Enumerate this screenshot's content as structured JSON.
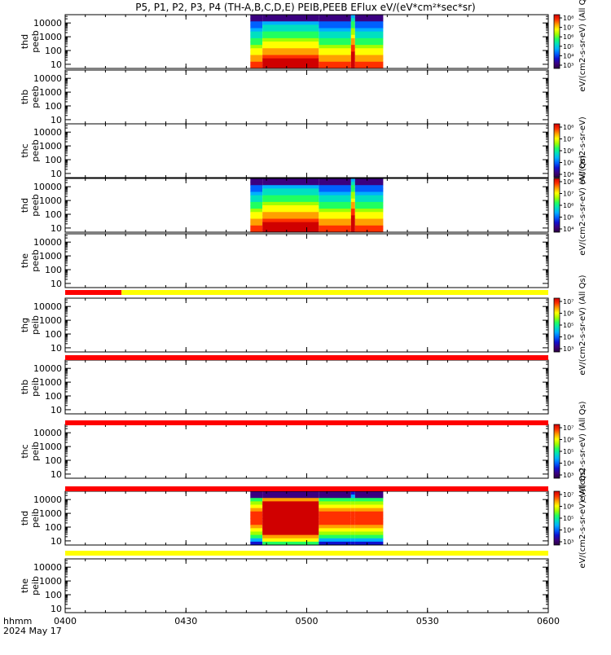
{
  "title": "P5, P1, P2, P3, P4 (TH-A,B,C,D,E) PEIB,PEEB EFlux eV/(eV*cm²*sec*sr)",
  "footer": {
    "hhmm_label": "hhmm",
    "date_label": "2024 May 17"
  },
  "colors": {
    "frame": "#000000",
    "quality_red": "#ff0000",
    "quality_yellow": "#ffff00",
    "colormap": [
      "#2a0040",
      "#3b0080",
      "#1010d0",
      "#0060ff",
      "#00b0ff",
      "#00e0c0",
      "#20ff60",
      "#a0ff00",
      "#ffff00",
      "#ffa000",
      "#ff3000",
      "#d00000"
    ]
  },
  "chart_data": {
    "type": "heatmap",
    "x_axis": {
      "ticks": [
        "0400",
        "0430",
        "0500",
        "0530",
        "0600"
      ],
      "range": [
        "04:00",
        "06:00"
      ]
    },
    "y_axis": {
      "scale": "log",
      "range": [
        5,
        40000
      ],
      "ticks": [
        "10",
        "100",
        "1000",
        "10000"
      ]
    },
    "panels": [
      {
        "label_top": "thd",
        "label_bottom": "peeb",
        "ylabel": "thd peeb",
        "data_interval": [
          "04:46",
          "05:19"
        ],
        "features": [
          {
            "at": "04:49",
            "note": "vertical edge"
          },
          {
            "at": "05:11",
            "note": "narrow enhancement"
          }
        ]
      },
      {
        "label_top": "thb",
        "label_bottom": "peeb",
        "data_interval": null
      },
      {
        "label_top": "thc",
        "label_bottom": "peeb",
        "data_interval": null
      },
      {
        "label_top": "thd",
        "label_bottom": "peeb",
        "data_interval": [
          "04:46",
          "05:19"
        ]
      },
      {
        "label_top": "the",
        "label_bottom": "peeb",
        "data_interval": null
      },
      {
        "label_top": "thg",
        "label_bottom": "peib",
        "data_interval": null
      },
      {
        "label_top": "thb",
        "label_bottom": "peib",
        "data_interval": null
      },
      {
        "label_top": "thc",
        "label_bottom": "peib",
        "data_interval": null
      },
      {
        "label_top": "thd",
        "label_bottom": "peib",
        "data_interval": [
          "04:46",
          "05:19"
        ]
      },
      {
        "label_top": "the",
        "label_bottom": "peib",
        "data_interval": null
      }
    ],
    "quality_bars": [
      {
        "after_panel": 5,
        "segments": [
          {
            "from": "04:00",
            "to": "04:14",
            "color": "red"
          },
          {
            "from": "04:14",
            "to": "06:00",
            "color": "yellow"
          }
        ]
      },
      {
        "after_panel": 6,
        "segments": [
          {
            "from": "04:00",
            "to": "06:00",
            "color": "red"
          }
        ]
      },
      {
        "after_panel": 7,
        "segments": [
          {
            "from": "04:00",
            "to": "06:00",
            "color": "red"
          }
        ]
      },
      {
        "after_panel": 8,
        "segments": [
          {
            "from": "04:00",
            "to": "06:00",
            "color": "red"
          }
        ]
      },
      {
        "after_panel": 9,
        "segments": [
          {
            "from": "04:00",
            "to": "06:00",
            "color": "yellow"
          }
        ]
      }
    ],
    "colorbars": [
      {
        "panel": 1,
        "ticks": [
          "10³",
          "10⁴",
          "10⁵",
          "10⁶",
          "10⁷",
          "10⁸"
        ],
        "label": "eV/(cm2-s-sr-eV) (All Qs)"
      },
      {
        "panel": 3,
        "ticks": [
          "10⁴",
          "10⁵",
          "10⁶",
          "10⁷",
          "10⁸"
        ],
        "label": "eV/(cm2-s-sr-eV)"
      },
      {
        "panel": 4,
        "ticks": [
          "10⁴",
          "10⁵",
          "10⁶",
          "10⁷",
          "10⁸"
        ],
        "label": "eV/(cm2-s-sr-eV) (All Qs)"
      },
      {
        "panel": 6,
        "ticks": [
          "10³",
          "10⁴",
          "10⁵",
          "10⁶",
          "10⁷"
        ],
        "label": "eV/(cm2-s-sr-eV) (All Qs)"
      },
      {
        "panel": 8,
        "ticks": [
          "10³",
          "10⁴",
          "10⁵",
          "10⁶",
          "10⁷"
        ],
        "label": "eV/(cm2-s-sr-eV) (All Qs)"
      },
      {
        "panel": 9,
        "ticks": [
          "10³",
          "10⁴",
          "10⁵",
          "10⁶",
          "10⁷"
        ],
        "label": "eV/(cm2-s-sr-eV) (All Qs)"
      }
    ]
  }
}
